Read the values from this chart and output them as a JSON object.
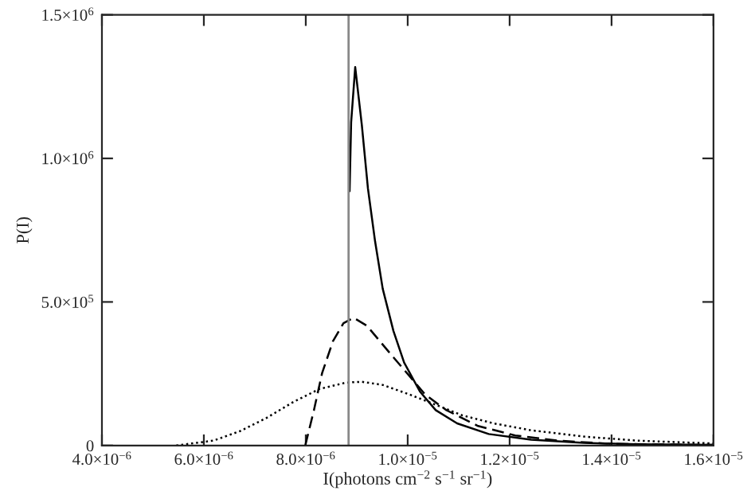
{
  "chart_data": {
    "type": "line",
    "xlabel": "I(photons cm$^{−2}$ s$^{−1}$ sr$^{−1}$)",
    "ylabel": "P(I)",
    "xlim": [
      4e-06,
      1.6e-05
    ],
    "ylim": [
      0,
      1500000
    ],
    "xticks": [
      {
        "value": 4e-06,
        "label": "4.0×10$^{−6}$"
      },
      {
        "value": 6e-06,
        "label": "6.0×10$^{−6}$"
      },
      {
        "value": 8e-06,
        "label": "8.0×10$^{−6}$"
      },
      {
        "value": 1e-05,
        "label": "1.0×10$^{−5}$"
      },
      {
        "value": 1.2e-05,
        "label": "1.2×10$^{−5}$"
      },
      {
        "value": 1.4e-05,
        "label": "1.4×10$^{−5}$"
      },
      {
        "value": 1.6e-05,
        "label": "1.6×10$^{−5}$"
      }
    ],
    "yticks": [
      0,
      {
        "value": 500000,
        "label": "5.0×10$^{5}$"
      },
      {
        "value": 1000000,
        "label": "1.0×10$^{6}$"
      },
      {
        "value": 1500000,
        "label": "1.5×10$^{6}$"
      }
    ],
    "grid": false,
    "ref_lines": [
      {
        "axis": "x",
        "value": 8.84e-06,
        "label": null,
        "color": "#888888"
      }
    ],
    "series": [
      {
        "color": "#000000",
        "line_style": "solid",
        "x": [
          8.86e-06,
          8.89e-06,
          8.97e-06,
          9.1e-06,
          9.22e-06,
          9.36e-06,
          9.51e-06,
          9.72e-06,
          9.93e-06,
          1.024e-05,
          1.055e-05,
          1.097e-05,
          1.159e-05,
          1.242e-05,
          1.346e-05,
          1.45e-05,
          1.6e-05
        ],
        "values": [
          886000,
          1125000,
          1318000,
          1116000,
          895000,
          711000,
          546000,
          399000,
          289000,
          188000,
          123000,
          77000,
          40000,
          20000,
          9000,
          4000,
          2000
        ]
      },
      {
        "color": "#000000",
        "line_style": "dashed",
        "x": [
          7.99e-06,
          8.16e-06,
          8.32e-06,
          8.53e-06,
          8.74e-06,
          8.94e-06,
          9.2e-06,
          9.46e-06,
          9.72e-06,
          1.003e-05,
          1.034e-05,
          1.076e-05,
          1.138e-05,
          1.211e-05,
          1.294e-05,
          1.398e-05,
          1.6e-05
        ],
        "values": [
          0,
          123000,
          252000,
          362000,
          426000,
          445000,
          417000,
          362000,
          307000,
          243000,
          178000,
          123000,
          68000,
          35000,
          17000,
          6000,
          2000
        ]
      },
      {
        "color": "#000000",
        "line_style": "dotted",
        "x": [
          5.46e-06,
          6.19e-06,
          6.71e-06,
          7.23e-06,
          7.75e-06,
          8.27e-06,
          8.79e-06,
          9.1e-06,
          9.51e-06,
          1.003e-05,
          1.055e-05,
          1.107e-05,
          1.169e-05,
          1.242e-05,
          1.346e-05,
          1.45e-05,
          1.6e-05
        ],
        "values": [
          0,
          17000,
          50000,
          96000,
          151000,
          197000,
          219000,
          222000,
          211000,
          178000,
          142000,
          105000,
          77000,
          53000,
          31000,
          17000,
          7000
        ]
      }
    ]
  }
}
